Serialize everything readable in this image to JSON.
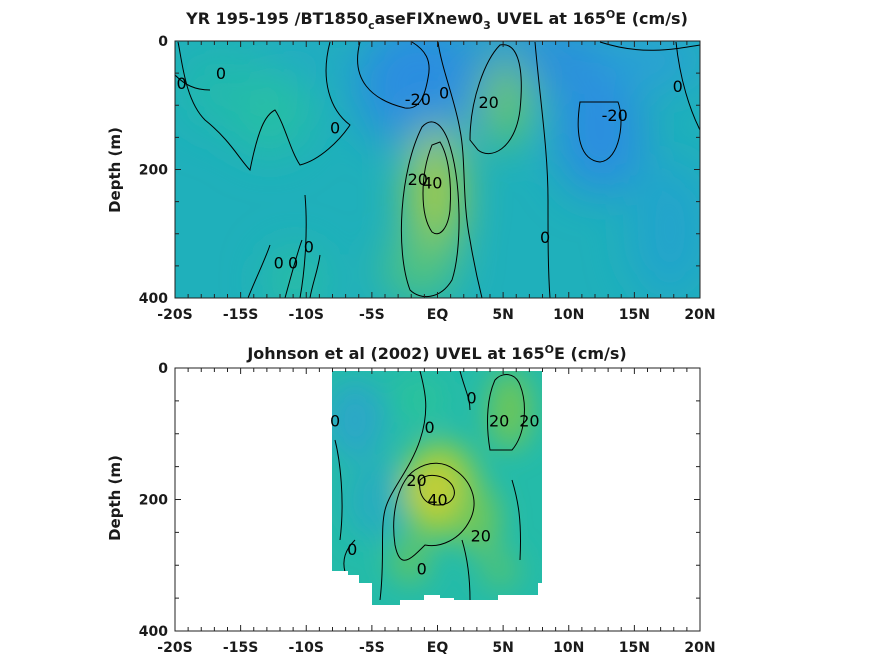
{
  "chart_data": [
    {
      "type": "heatmap",
      "title": {
        "main": "YR 195-195 /BT1850",
        "sub1": "c",
        "mid": "aseFIXnew0",
        "sub2": "3",
        "post": " UVEL at 165",
        "sup": "O",
        "end": "E (cm/s)"
      },
      "xlabel": "",
      "ylabel": "Depth (m)",
      "xlim": [
        -20,
        20
      ],
      "ylim": [
        0,
        400
      ],
      "x_ticks": [
        -20,
        -15,
        -10,
        -5,
        0,
        5,
        10,
        15,
        20
      ],
      "x_tick_labels": [
        "-20S",
        "-15S",
        "-10S",
        "-5S",
        "EQ",
        "5N",
        "10N",
        "15N",
        "20N"
      ],
      "y_ticks": [
        0,
        200,
        400
      ],
      "y_tick_labels": [
        "0",
        "200",
        "400"
      ],
      "data_extent": {
        "lat": [
          -20,
          20
        ],
        "depth": [
          0,
          400
        ]
      },
      "features": [
        {
          "lat": 0,
          "depth": 190,
          "value": 45
        },
        {
          "lat": 5.5,
          "depth": 90,
          "value": 25
        },
        {
          "lat": -3,
          "depth": 60,
          "value": -25
        },
        {
          "lat": 12,
          "depth": 150,
          "value": -25
        },
        {
          "lat": 8,
          "depth": 50,
          "value": -15
        },
        {
          "lat": -9,
          "depth": 250,
          "value": 3
        },
        {
          "lat": -15,
          "depth": 150,
          "value": 6
        },
        {
          "lat": 17,
          "depth": 300,
          "value": -8
        }
      ],
      "contour_labels": [
        {
          "text": "0",
          "lat": -19.5,
          "depth": 65
        },
        {
          "text": "0",
          "lat": -16.5,
          "depth": 50
        },
        {
          "text": "-20",
          "lat": -1.5,
          "depth": 90
        },
        {
          "text": "0",
          "lat": 0.5,
          "depth": 80
        },
        {
          "text": "20",
          "lat": 3.9,
          "depth": 95
        },
        {
          "text": "0",
          "lat": -7.8,
          "depth": 135
        },
        {
          "text": "-20",
          "lat": 13.5,
          "depth": 115
        },
        {
          "text": "0",
          "lat": 18.3,
          "depth": 70
        },
        {
          "text": "20",
          "lat": -1.5,
          "depth": 215
        },
        {
          "text": "40",
          "lat": -0.4,
          "depth": 220
        },
        {
          "text": "0",
          "lat": 8.2,
          "depth": 305
        },
        {
          "text": "0",
          "lat": -9.8,
          "depth": 320
        },
        {
          "text": "0",
          "lat": -11,
          "depth": 345
        },
        {
          "text": "0",
          "lat": -12.1,
          "depth": 345
        }
      ]
    },
    {
      "type": "heatmap",
      "title": {
        "main": "Johnson et al (2002) UVEL at 165",
        "sup": "O",
        "end": "E (cm/s)"
      },
      "xlabel": "",
      "ylabel": "Depth (m)",
      "xlim": [
        -20,
        20
      ],
      "ylim": [
        0,
        400
      ],
      "x_ticks": [
        -20,
        -15,
        -10,
        -5,
        0,
        5,
        10,
        15,
        20
      ],
      "x_tick_labels": [
        "-20S",
        "-15S",
        "-10S",
        "-5S",
        "EQ",
        "5N",
        "10N",
        "15N",
        "20N"
      ],
      "y_ticks": [
        0,
        200,
        400
      ],
      "y_tick_labels": [
        "0",
        "200",
        "400"
      ],
      "data_extent": {
        "lat": [
          -8,
          8
        ],
        "depth": [
          0,
          350
        ]
      },
      "features": [
        {
          "lat": 0,
          "depth": 190,
          "value": 45
        },
        {
          "lat": 3.5,
          "depth": 180,
          "value": 28
        },
        {
          "lat": 5.5,
          "depth": 60,
          "value": 22
        },
        {
          "lat": -2,
          "depth": 60,
          "value": 5
        },
        {
          "lat": -6,
          "depth": 120,
          "value": -5
        },
        {
          "lat": -2.5,
          "depth": 300,
          "value": 15
        },
        {
          "lat": 3.5,
          "depth": 300,
          "value": 20
        }
      ],
      "contour_labels": [
        {
          "text": "0",
          "lat": -7.8,
          "depth": 80
        },
        {
          "text": "0",
          "lat": -0.6,
          "depth": 90
        },
        {
          "text": "0",
          "lat": 2.6,
          "depth": 45
        },
        {
          "text": "20",
          "lat": 4.7,
          "depth": 80
        },
        {
          "text": "20",
          "lat": 7,
          "depth": 80
        },
        {
          "text": "20",
          "lat": -1.6,
          "depth": 170
        },
        {
          "text": "40",
          "lat": 0,
          "depth": 200
        },
        {
          "text": "20",
          "lat": 3.3,
          "depth": 255
        },
        {
          "text": "0",
          "lat": -6.5,
          "depth": 275
        },
        {
          "text": "0",
          "lat": -1.2,
          "depth": 305
        }
      ]
    }
  ]
}
